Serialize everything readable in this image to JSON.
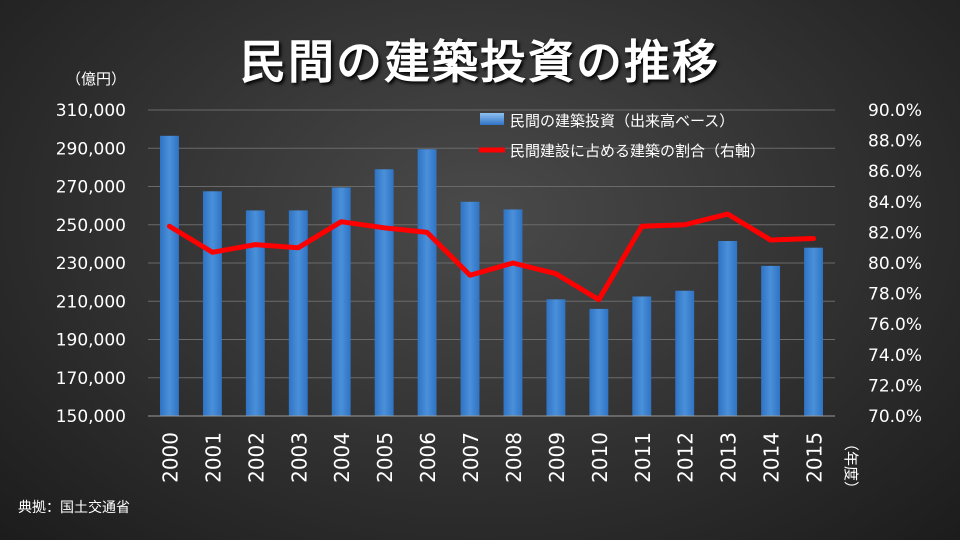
{
  "title": "民間の建築投資の推移",
  "left_unit": "（億円）",
  "right_unit": "（年度）",
  "source": "典拠：国土交通省",
  "colors": {
    "bar": "#4a90d9",
    "line": "#ff0000",
    "grid": "#6a6a6a",
    "text": "#ffffff"
  },
  "chart_data": {
    "type": "bar",
    "title": "民間の建築投資の推移",
    "categories": [
      "2000",
      "2001",
      "2002",
      "2003",
      "2004",
      "2005",
      "2006",
      "2007",
      "2008",
      "2009",
      "2010",
      "2011",
      "2012",
      "2013",
      "2014",
      "2015"
    ],
    "ylabel": "（億円）",
    "xlabel": "（年度）",
    "ylim": [
      150000,
      310000
    ],
    "y2lim": [
      70.0,
      90.0
    ],
    "yticks": [
      "150,000",
      "170,000",
      "190,000",
      "210,000",
      "230,000",
      "250,000",
      "270,000",
      "290,000",
      "310,000"
    ],
    "y2ticks": [
      "70.0%",
      "72.0%",
      "74.0%",
      "76.0%",
      "78.0%",
      "80.0%",
      "82.0%",
      "84.0%",
      "86.0%",
      "88.0%",
      "90.0%"
    ],
    "grid": true,
    "legend_position": "top-right",
    "series": [
      {
        "name": "民間の建築投資（出来高ベース）",
        "type": "bar",
        "axis": "left",
        "values": [
          296500,
          267500,
          257500,
          257500,
          269500,
          279000,
          289500,
          262000,
          258000,
          211000,
          206000,
          212500,
          215500,
          241500,
          228500,
          238000
        ]
      },
      {
        "name": "民間建設に占める建築の割合（右軸）",
        "type": "line",
        "axis": "right",
        "values": [
          82.4,
          80.7,
          81.2,
          81.0,
          82.7,
          82.3,
          82.0,
          79.2,
          80.0,
          79.3,
          77.6,
          82.4,
          82.5,
          83.2,
          81.5,
          81.6
        ]
      }
    ]
  }
}
